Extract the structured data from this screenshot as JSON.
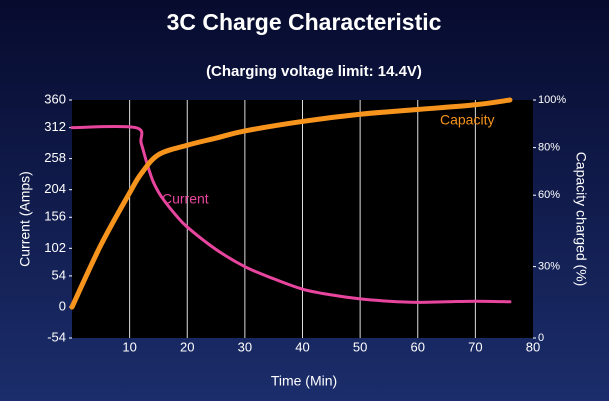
{
  "chart_data": {
    "type": "line",
    "title": "3C Charge Characteristic",
    "subtitle": "(Charging voltage limit: 14.4V)",
    "x_label": "Time (Min)",
    "y_label": "Current (Amps)",
    "y2_label": "Capacity charged (%)",
    "xlim": [
      0,
      80
    ],
    "xticks": [
      10,
      20,
      30,
      40,
      50,
      60,
      70,
      80
    ],
    "ylim": [
      -54,
      360
    ],
    "yticks": [
      -54,
      0,
      54,
      102,
      156,
      204,
      258,
      312,
      360
    ],
    "y2lim": [
      0,
      100
    ],
    "y2ticks": [
      0,
      {
        "value": 30,
        "label": "30%"
      },
      {
        "value": 60,
        "label": "60%"
      },
      {
        "value": 80,
        "label": "80%"
      },
      {
        "value": 100,
        "label": "100%"
      }
    ],
    "grid": "x",
    "series": [
      {
        "name": "Current",
        "color": "#e8459e",
        "axis": "y",
        "x": [
          0,
          11,
          12,
          13,
          14,
          15,
          16,
          18,
          20,
          25,
          30,
          35,
          40,
          45,
          50,
          55,
          60,
          65,
          70,
          76
        ],
        "values": [
          312,
          312,
          285,
          250,
          220,
          200,
          185,
          160,
          139,
          100,
          70,
          49,
          31,
          21,
          14,
          10,
          8,
          9,
          10,
          9
        ]
      },
      {
        "name": "Capacity",
        "color": "#f7941d",
        "axis": "y2",
        "x": [
          0,
          5,
          10,
          12,
          15,
          20,
          25,
          30,
          40,
          50,
          60,
          70,
          76
        ],
        "values": [
          13,
          39,
          61,
          69,
          77,
          81,
          84,
          87,
          91,
          94,
          96,
          98,
          100
        ]
      }
    ]
  }
}
